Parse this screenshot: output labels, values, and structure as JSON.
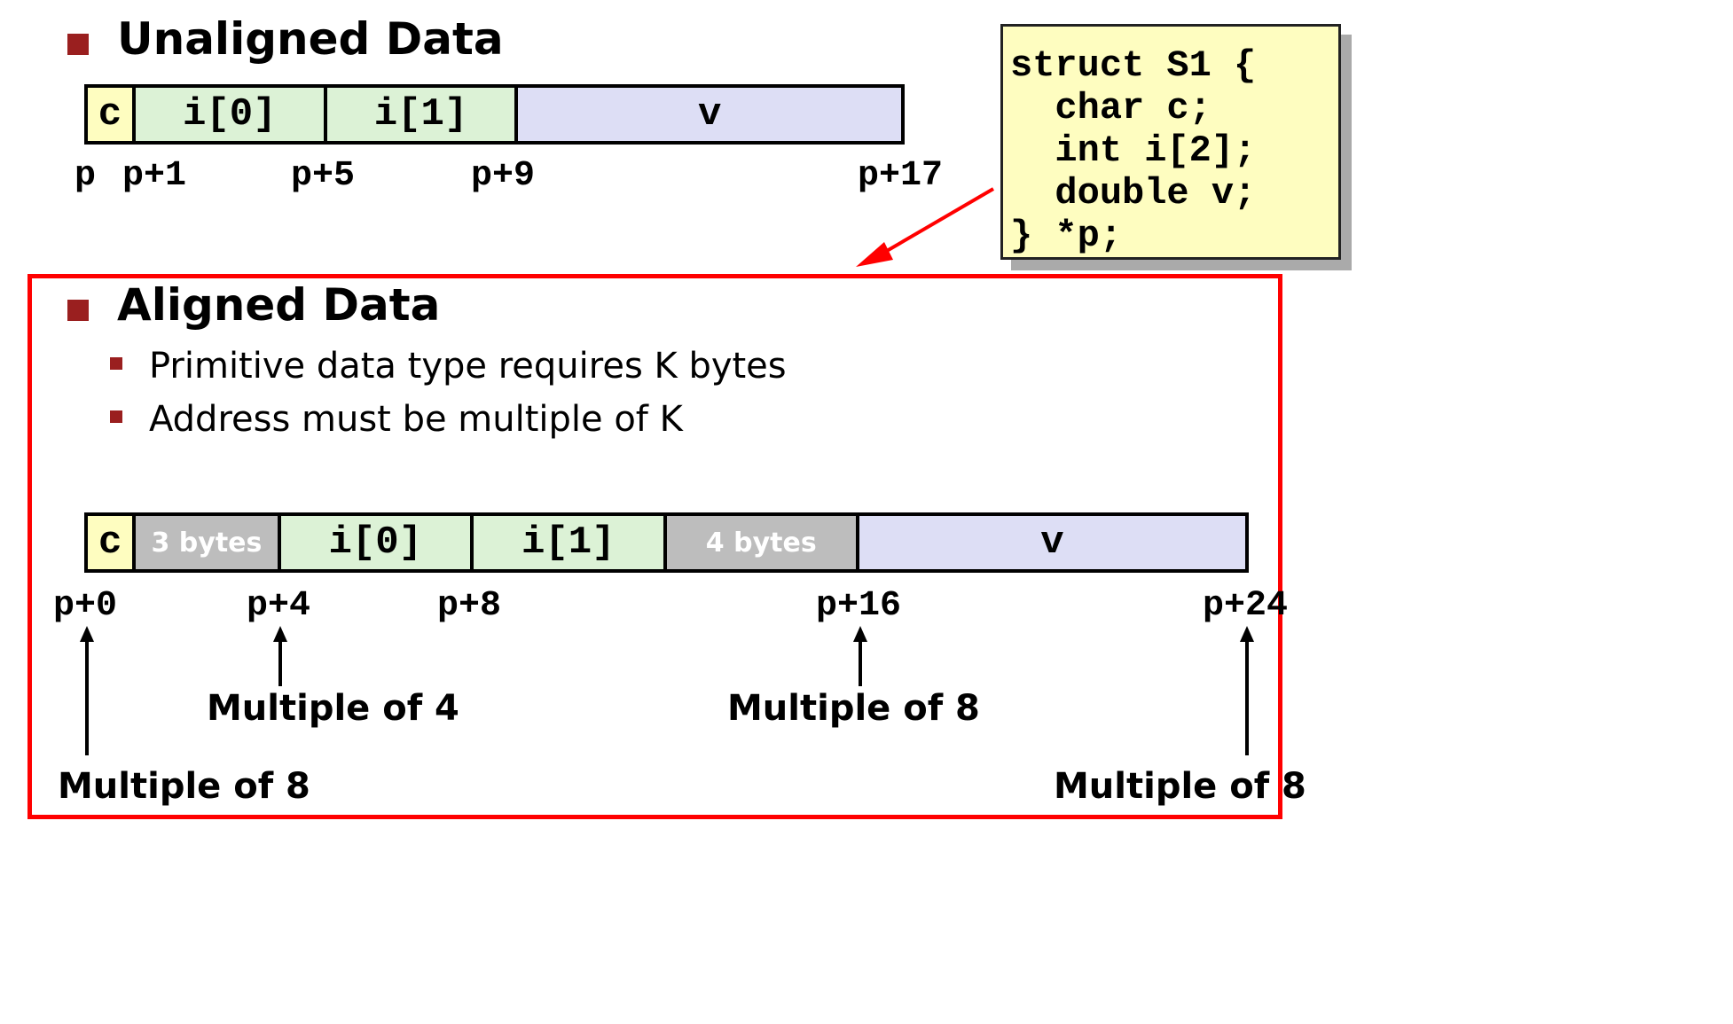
{
  "unaligned": {
    "title": "Unaligned Data",
    "cells": [
      {
        "label": "c",
        "bytes": 1,
        "color": "#fefdc0"
      },
      {
        "label": "i[0]",
        "bytes": 4,
        "color": "#dcf2d6"
      },
      {
        "label": "i[1]",
        "bytes": 4,
        "color": "#dcf2d6"
      },
      {
        "label": "v",
        "bytes": 8,
        "color": "#dddef5"
      }
    ],
    "offsets": [
      "p",
      "p+1",
      "p+5",
      "p+9",
      "p+17"
    ]
  },
  "code": {
    "lines": [
      "struct S1 {",
      "  char c;",
      "  int i[2];",
      "  double v;",
      "} *p;"
    ],
    "bg_color": "#fefdc0"
  },
  "aligned": {
    "title": "Aligned Data",
    "bullets": [
      "Primitive data type requires K bytes",
      "Address must be multiple of K"
    ],
    "cells": [
      {
        "label": "c",
        "bytes": 1,
        "color": "#fefdc0",
        "pad": false
      },
      {
        "label": "3 bytes",
        "bytes": 3,
        "color": "#bdbdbd",
        "pad": true
      },
      {
        "label": "i[0]",
        "bytes": 4,
        "color": "#dcf2d6",
        "pad": false
      },
      {
        "label": "i[1]",
        "bytes": 4,
        "color": "#dcf2d6",
        "pad": false
      },
      {
        "label": "4 bytes",
        "bytes": 4,
        "color": "#bdbdbd",
        "pad": true
      },
      {
        "label": "v",
        "bytes": 8,
        "color": "#dddef5",
        "pad": false
      }
    ],
    "offsets": [
      "p+0",
      "p+4",
      "p+8",
      "p+16",
      "p+24"
    ],
    "notes": [
      "Multiple of 8",
      "Multiple of 4",
      "Multiple of 8",
      "Multiple of 8"
    ]
  },
  "colors": {
    "bullet": "#9a1f1f",
    "highlight_box": "#ff0000",
    "callout_arrow": "#ff0000"
  }
}
